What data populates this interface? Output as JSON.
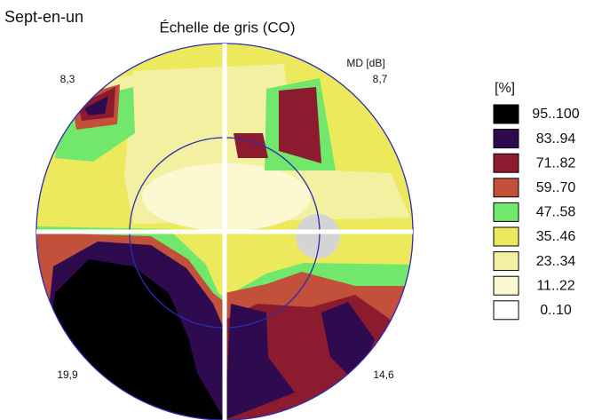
{
  "header": {
    "title": "Sept-en-un",
    "subtitle": "Échelle de gris (CO)"
  },
  "map": {
    "unit_label": "MD [dB]",
    "quadrants": {
      "upper_left": "8,3",
      "upper_right": "8,7",
      "lower_left": "19,9",
      "lower_right": "14,6"
    }
  },
  "legend": {
    "title": "[%]",
    "items": [
      {
        "label": "95..100",
        "color": "#000000"
      },
      {
        "label": "83..94",
        "color": "#2e0b4f"
      },
      {
        "label": "71..82",
        "color": "#8c1b2f"
      },
      {
        "label": "59..70",
        "color": "#c2503b"
      },
      {
        "label": "47..58",
        "color": "#71e86b"
      },
      {
        "label": "35..46",
        "color": "#ecea5c"
      },
      {
        "label": "23..34",
        "color": "#f3f0a2"
      },
      {
        "label": "11..22",
        "color": "#fcf9d2"
      },
      {
        "label": "0..10",
        "color": "#ffffff"
      }
    ]
  }
}
